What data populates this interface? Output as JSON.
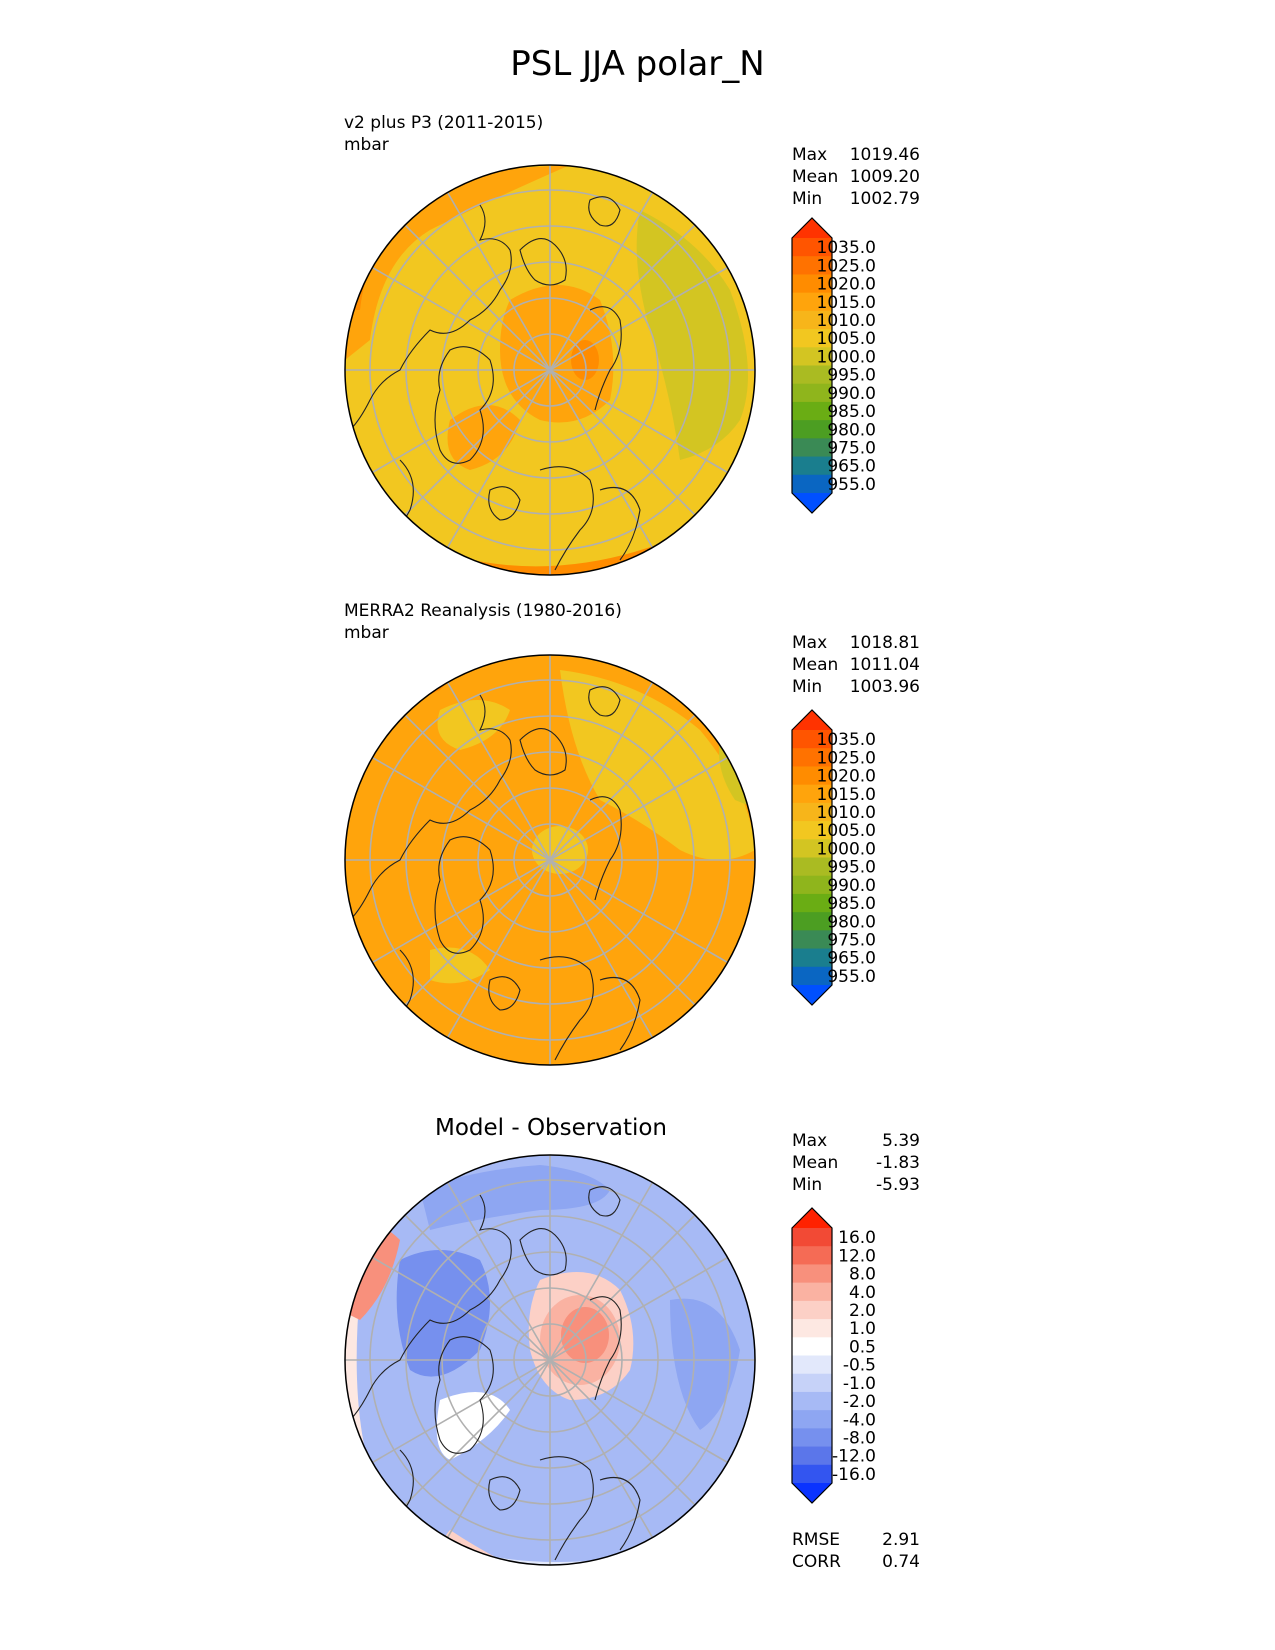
{
  "title": "PSL JJA polar_N",
  "panels": [
    {
      "id": "test",
      "label_line1": "v2 plus P3 (2011-2015)",
      "label_line2": "mbar",
      "stats": [
        {
          "name": "Max",
          "value": "1019.46"
        },
        {
          "name": "Mean",
          "value": "1009.20"
        },
        {
          "name": "Min",
          "value": "1002.79"
        }
      ]
    },
    {
      "id": "ref",
      "label_line1": "MERRA2 Reanalysis (1980-2016)",
      "label_line2": "mbar",
      "stats": [
        {
          "name": "Max",
          "value": "1018.81"
        },
        {
          "name": "Mean",
          "value": "1011.04"
        },
        {
          "name": "Min",
          "value": "1003.96"
        }
      ]
    },
    {
      "id": "diff",
      "title": "Model - Observation",
      "stats": [
        {
          "name": "Max",
          "value": "5.39"
        },
        {
          "name": "Mean",
          "value": "-1.83"
        },
        {
          "name": "Min",
          "value": "-5.93"
        }
      ],
      "metrics": [
        {
          "name": "RMSE",
          "value": "2.91"
        },
        {
          "name": "CORR",
          "value": "0.74"
        }
      ]
    }
  ],
  "colorbars": {
    "field": {
      "ticks": [
        "1035.0",
        "1025.0",
        "1020.0",
        "1015.0",
        "1010.0",
        "1005.0",
        "1000.0",
        "995.0",
        "990.0",
        "985.0",
        "980.0",
        "975.0",
        "965.0",
        "955.0"
      ],
      "colors": [
        "#ff3300",
        "#ff5500",
        "#ff7200",
        "#ff8c00",
        "#ffa40c",
        "#f7b51a",
        "#f2c720",
        "#d3c522",
        "#aabb22",
        "#8fb51c",
        "#6aad14",
        "#4c9e22",
        "#3a8a55",
        "#1a7e8e",
        "#0a66c2",
        "#0050ff"
      ]
    },
    "diff": {
      "ticks": [
        "16.0",
        "12.0",
        "8.0",
        "4.0",
        "2.0",
        "1.0",
        "0.5",
        "-0.5",
        "-1.0",
        "-2.0",
        "-4.0",
        "-8.0",
        "-12.0",
        "-16.0"
      ],
      "colors": [
        "#ff2200",
        "#f24a35",
        "#f56b55",
        "#f8907c",
        "#fab2a2",
        "#fcd0c6",
        "#fde8e2",
        "#ffffff",
        "#e2e8fb",
        "#c6d2f8",
        "#a7baf5",
        "#8ea6f2",
        "#7690ee",
        "#5b76ea",
        "#3355f0",
        "#0a33ff"
      ]
    }
  },
  "chart_data": [
    {
      "type": "heatmap",
      "title": "v2 plus P3 (2011-2015)",
      "units": "mbar",
      "projection": "polar north",
      "colorbar_levels": [
        955,
        965,
        975,
        980,
        985,
        990,
        995,
        1000,
        1005,
        1010,
        1015,
        1020,
        1025,
        1035
      ],
      "stats": {
        "max": 1019.46,
        "mean": 1009.2,
        "min": 1002.79
      }
    },
    {
      "type": "heatmap",
      "title": "MERRA2 Reanalysis (1980-2016)",
      "units": "mbar",
      "projection": "polar north",
      "colorbar_levels": [
        955,
        965,
        975,
        980,
        985,
        990,
        995,
        1000,
        1005,
        1010,
        1015,
        1020,
        1025,
        1035
      ],
      "stats": {
        "max": 1018.81,
        "mean": 1011.04,
        "min": 1003.96
      }
    },
    {
      "type": "heatmap",
      "title": "Model - Observation",
      "projection": "polar north",
      "colorbar_levels": [
        -16,
        -12,
        -8,
        -4,
        -2,
        -1,
        -0.5,
        0.5,
        1,
        2,
        4,
        8,
        12,
        16
      ],
      "stats": {
        "max": 5.39,
        "mean": -1.83,
        "min": -5.93,
        "rmse": 2.91,
        "corr": 0.74
      }
    }
  ]
}
